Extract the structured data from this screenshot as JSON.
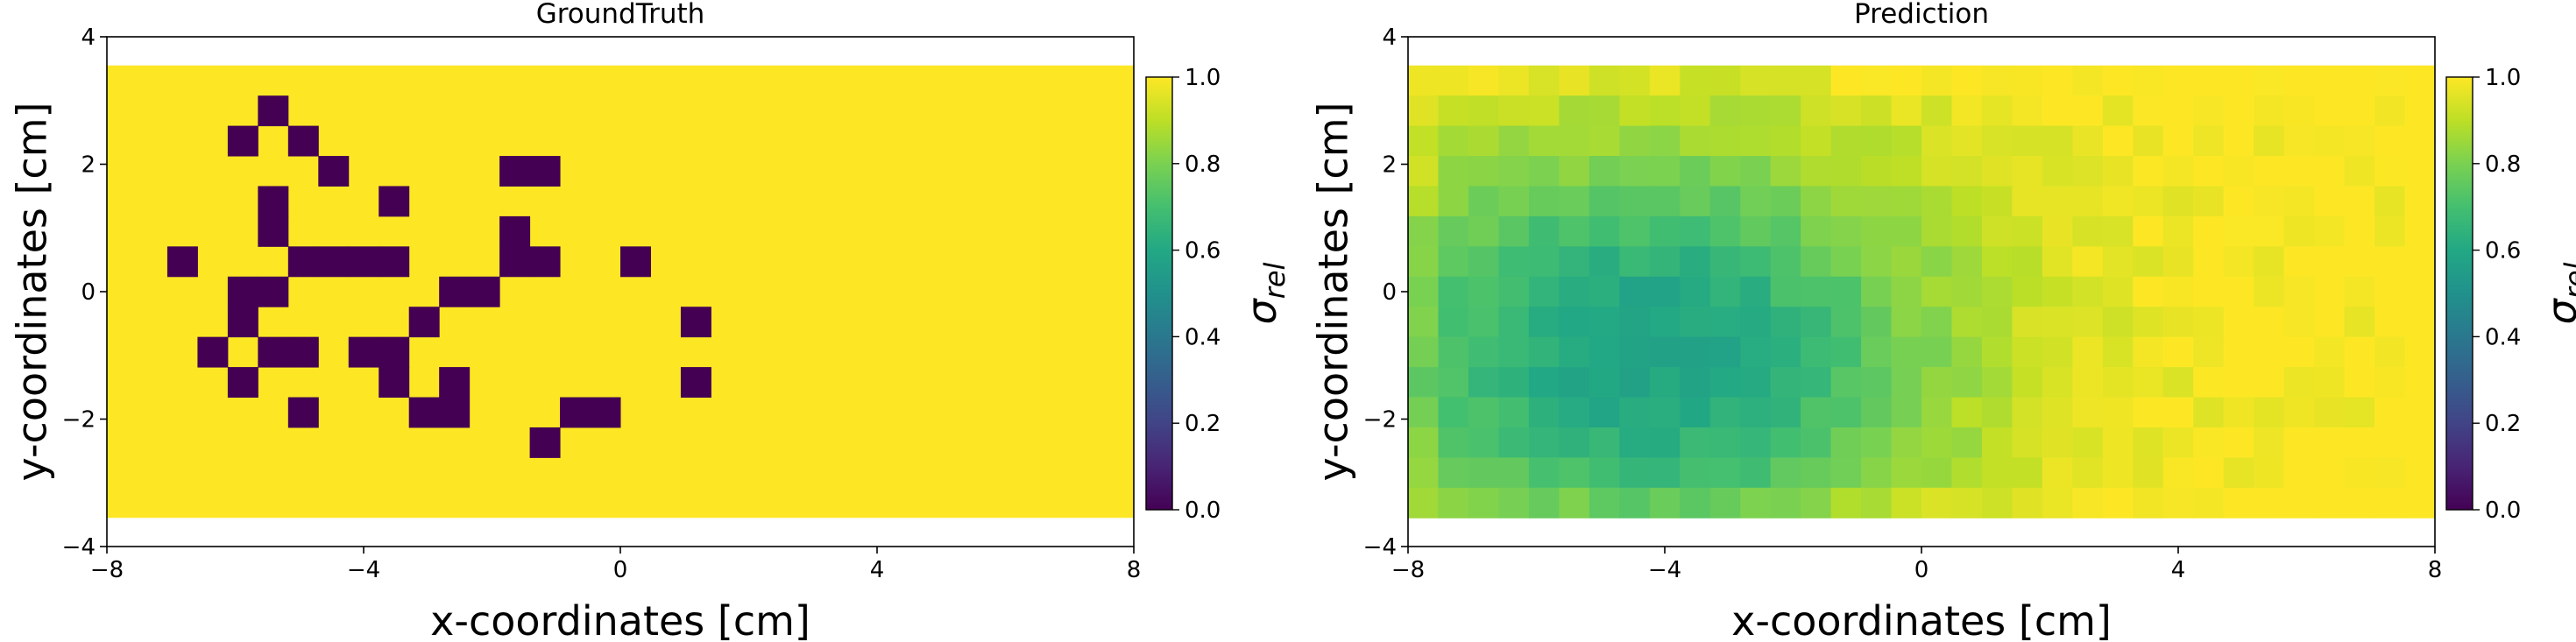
{
  "colors": {
    "viridis_0": "#440154",
    "viridis_025": "#3b528b",
    "viridis_05": "#21918c",
    "viridis_075": "#5ec962",
    "viridis_1": "#fde725",
    "axes": "#000000",
    "background": "#ffffff"
  },
  "colorbar": {
    "label": "σ",
    "label_sub": "rel",
    "ticks": [
      "0.0",
      "0.2",
      "0.4",
      "0.6",
      "0.8",
      "1.0"
    ],
    "tick_values": [
      0.0,
      0.2,
      0.4,
      0.6,
      0.8,
      1.0
    ],
    "colormap": "viridis"
  },
  "chart_data": [
    {
      "type": "heatmap",
      "title": "GroundTruth",
      "xlabel": "x-coordinates [cm]",
      "ylabel": "y-coordinates [cm]",
      "xlim": [
        -8,
        8
      ],
      "ylim": [
        -4,
        4
      ],
      "x_ticks": [
        -8,
        -4,
        0,
        4,
        8
      ],
      "y_ticks": [
        -4,
        -2,
        0,
        2,
        4
      ],
      "x_tick_labels": [
        "−8",
        "−4",
        "0",
        "4",
        "8"
      ],
      "y_tick_labels": [
        "−4",
        "−2",
        "0",
        "2",
        "4"
      ],
      "extent": [
        -8,
        8,
        -3.55,
        3.55
      ],
      "grid": {
        "cols": 34,
        "rows": 15
      },
      "background_value": 1.0,
      "cells_value_0": [
        [
          5,
          1
        ],
        [
          4,
          2
        ],
        [
          6,
          2
        ],
        [
          7,
          3
        ],
        [
          13,
          3
        ],
        [
          14,
          3
        ],
        [
          5,
          4
        ],
        [
          9,
          4
        ],
        [
          5,
          5
        ],
        [
          13,
          5
        ],
        [
          2,
          6
        ],
        [
          6,
          6
        ],
        [
          7,
          6
        ],
        [
          8,
          6
        ],
        [
          9,
          6
        ],
        [
          13,
          6
        ],
        [
          14,
          6
        ],
        [
          17,
          6
        ],
        [
          4,
          7
        ],
        [
          5,
          7
        ],
        [
          11,
          7
        ],
        [
          12,
          7
        ],
        [
          4,
          8
        ],
        [
          10,
          8
        ],
        [
          19,
          8
        ],
        [
          3,
          9
        ],
        [
          5,
          9
        ],
        [
          6,
          9
        ],
        [
          8,
          9
        ],
        [
          9,
          9
        ],
        [
          4,
          10
        ],
        [
          9,
          10
        ],
        [
          11,
          10
        ],
        [
          19,
          10
        ],
        [
          6,
          11
        ],
        [
          10,
          11
        ],
        [
          11,
          11
        ],
        [
          15,
          11
        ],
        [
          16,
          11
        ],
        [
          14,
          12
        ]
      ],
      "colorbar": "shared viridis 0.0–1.0"
    },
    {
      "type": "heatmap",
      "title": "Prediction",
      "xlabel": "x-coordinates [cm]",
      "ylabel": "y-coordinates [cm]",
      "xlim": [
        -8,
        8
      ],
      "ylim": [
        -4,
        4
      ],
      "x_ticks": [
        -8,
        -4,
        0,
        4,
        8
      ],
      "y_ticks": [
        -4,
        -2,
        0,
        2,
        4
      ],
      "x_tick_labels": [
        "−8",
        "−4",
        "0",
        "4",
        "8"
      ],
      "y_tick_labels": [
        "−4",
        "−2",
        "0",
        "2",
        "4"
      ],
      "extent": [
        -8,
        8,
        -3.55,
        3.55
      ],
      "grid": {
        "cols": 34,
        "rows": 15
      },
      "field": {
        "description_of_values": "relative sigma field, low region centered near x≈-4.3 cm, y≈-1.0 cm",
        "min_value": 0.57,
        "max_value": 1.0,
        "center_x": -4.3,
        "center_y": -1.0,
        "sigma_x": 3.4,
        "sigma_y": 2.4
      },
      "colorbar": "shared viridis 0.0–1.0"
    }
  ]
}
